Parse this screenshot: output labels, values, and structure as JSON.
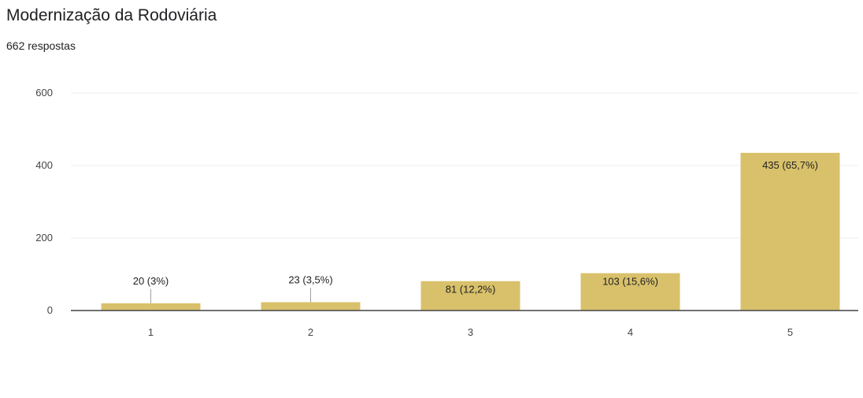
{
  "header": {
    "title": "Modernização da Rodoviária",
    "subtitle": "662 respostas"
  },
  "chart_data": {
    "type": "bar",
    "categories": [
      "1",
      "2",
      "3",
      "4",
      "5"
    ],
    "values": [
      20,
      23,
      81,
      103,
      435
    ],
    "data_labels": [
      "20 (3%)",
      "23 (3,5%)",
      "81 (12,2%)",
      "103 (15,6%)",
      "435 (65,7%)"
    ],
    "yticks": [
      "0",
      "200",
      "400",
      "600"
    ],
    "ylim": [
      0,
      600
    ],
    "grid": true,
    "bar_color": "#d9c16b",
    "axis_color": "#444444",
    "grid_color": "#eeeeee"
  }
}
